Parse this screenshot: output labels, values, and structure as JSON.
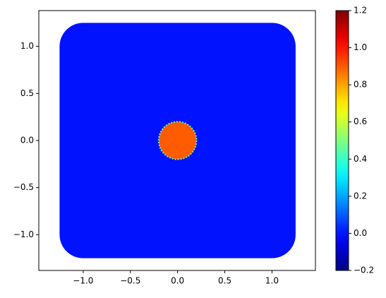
{
  "chart_data": {
    "type": "field",
    "colormap": "jet",
    "square": {
      "x": [
        -1.25,
        1.25
      ],
      "y": [
        -1.25,
        1.25
      ],
      "corner_radius": 0.25,
      "value": 0.0
    },
    "disc": {
      "center": [
        0,
        0
      ],
      "radius": 0.2,
      "value": 0.9
    },
    "xlim": [
      -1.47,
      1.46
    ],
    "ylim": [
      -1.38,
      1.38
    ],
    "xticks": [
      {
        "value": -1.0,
        "label": "−1.0"
      },
      {
        "value": -0.5,
        "label": "−0.5"
      },
      {
        "value": 0.0,
        "label": "0.0"
      },
      {
        "value": 0.5,
        "label": "0.5"
      },
      {
        "value": 1.0,
        "label": "1.0"
      }
    ],
    "yticks": [
      {
        "value": -1.0,
        "label": "−1.0"
      },
      {
        "value": -0.5,
        "label": "−0.5"
      },
      {
        "value": 0.0,
        "label": "0.0"
      },
      {
        "value": 0.5,
        "label": "0.5"
      },
      {
        "value": 1.0,
        "label": "1.0"
      }
    ],
    "clim": [
      -0.2,
      1.2
    ],
    "cticks": [
      {
        "value": -0.2,
        "label": "−0.2"
      },
      {
        "value": 0.0,
        "label": "0.0"
      },
      {
        "value": 0.2,
        "label": "0.2"
      },
      {
        "value": 0.4,
        "label": "0.4"
      },
      {
        "value": 0.6,
        "label": "0.6"
      },
      {
        "value": 0.8,
        "label": "0.8"
      },
      {
        "value": 1.0,
        "label": "1.0"
      },
      {
        "value": 1.2,
        "label": "1.2"
      }
    ]
  }
}
